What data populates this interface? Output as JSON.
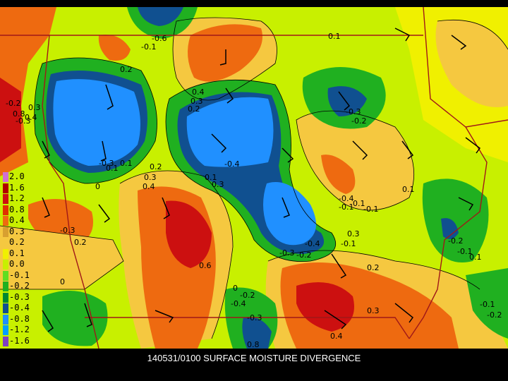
{
  "caption": "140531/0100 SURFACE MOISTURE DIVERGENCE",
  "legend": {
    "labels": [
      "2.0",
      "1.6",
      "1.2",
      "0.8",
      "0.4",
      "0.3",
      "0.2",
      "0.1",
      "0.0",
      "-0.1",
      "-0.2",
      "-0.3",
      "-0.4",
      "-0.8",
      "-1.2",
      "-1.6"
    ],
    "colors": [
      "#d070d0",
      "#b00000",
      "#cc1010",
      "#e03000",
      "#ee6a10",
      "#d8a030",
      "#f5c840",
      "#f0f000",
      "#c8f000",
      "#60dd20",
      "#20b020",
      "#008830",
      "#105090",
      "#2090ff",
      "#00a0ff",
      "#8040c0"
    ]
  },
  "contour_labels": [
    "-0.6",
    "-0.1",
    "0.2",
    "0.1",
    "-0.2",
    "0.3",
    "0.4",
    "0.3",
    "0.2",
    "-0.4",
    "-0.3",
    "0.1",
    "0",
    "-0.3",
    "-0.2",
    "0.8",
    "0.4",
    "-0.3",
    "0.4",
    "-0.4",
    "-0.1",
    "0.3",
    "0.2",
    "0.1",
    "0.1",
    "0.3",
    "0.1",
    "-0.1",
    "0.1",
    "-0.3",
    "0.2",
    "0.6",
    "0.3",
    "-0.4",
    "-0.3",
    "-0.2",
    "0.2",
    "-0.1",
    "-0.2",
    "-0.1",
    "0.1",
    "0",
    "-0.2",
    "-0.3",
    "-0.4",
    "0.3",
    "0.4",
    "0.8",
    "-0.1",
    "-0.2",
    "0"
  ]
}
